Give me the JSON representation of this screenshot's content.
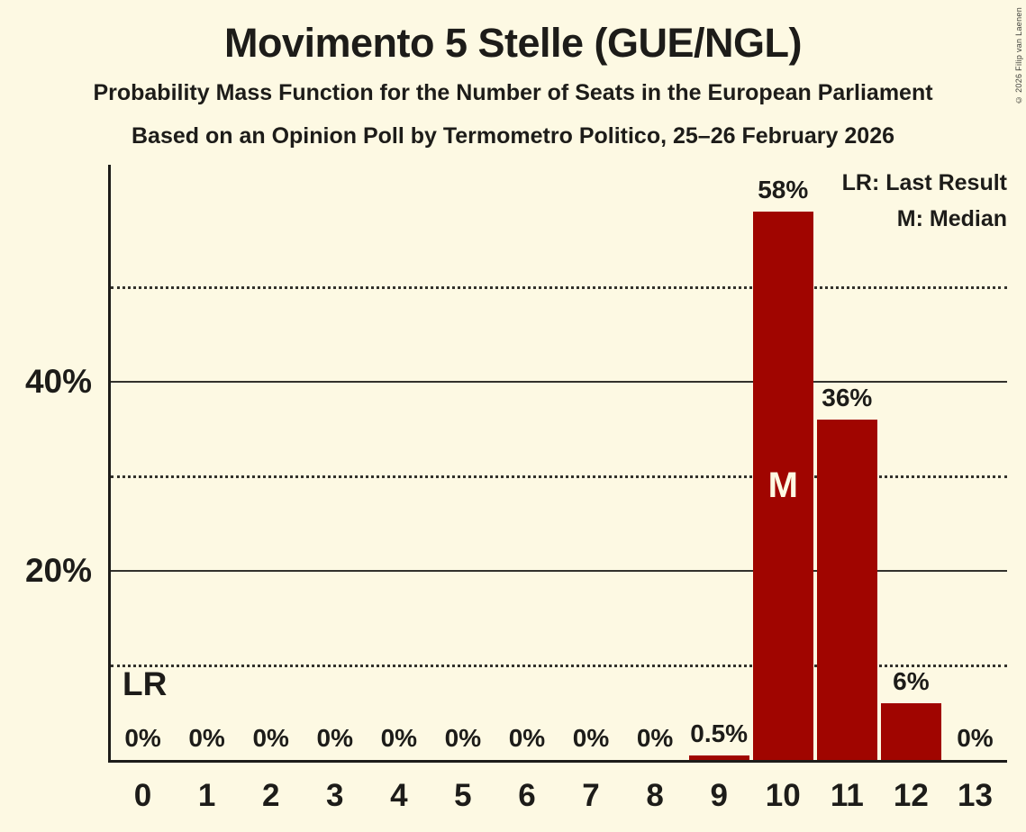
{
  "header": {
    "title": "Movimento 5 Stelle (GUE/NGL)",
    "subtitle1": "Probability Mass Function for the Number of Seats in the European Parliament",
    "subtitle2": "Based on an Opinion Poll by Termometro Politico, 25–26 February 2026"
  },
  "legend": {
    "last_result_label": "LR: Last Result",
    "median_label": "M: Median"
  },
  "footer": {
    "copyright": "© 2026 Filip van Laenen"
  },
  "colors": {
    "background": "#FDF9E3",
    "bar": "#A00500",
    "text": "#1D1C19",
    "gridline": "#33322C",
    "marker_text": "#FDF9E3"
  },
  "chart_data": {
    "type": "bar",
    "title": "Movimento 5 Stelle (GUE/NGL)",
    "xlabel": "",
    "ylabel": "",
    "categories": [
      "0",
      "1",
      "2",
      "3",
      "4",
      "5",
      "6",
      "7",
      "8",
      "9",
      "10",
      "11",
      "12",
      "13"
    ],
    "values": [
      0,
      0,
      0,
      0,
      0,
      0,
      0,
      0,
      0,
      0.5,
      58,
      36,
      6,
      0
    ],
    "value_labels": [
      "0%",
      "0%",
      "0%",
      "0%",
      "0%",
      "0%",
      "0%",
      "0%",
      "0%",
      "0.5%",
      "58%",
      "36%",
      "6%",
      "0%"
    ],
    "ylim": [
      0,
      63
    ],
    "yticks": [
      {
        "value": 20,
        "label": "20%"
      },
      {
        "value": 40,
        "label": "40%"
      }
    ],
    "gridlines": {
      "solid": [
        20,
        40
      ],
      "dotted": [
        10,
        30,
        50
      ]
    },
    "legend_position": "top-right",
    "grid": true,
    "annotations": {
      "last_result": {
        "label": "LR",
        "seat": 0
      },
      "median": {
        "label": "M",
        "seat": 10
      }
    }
  }
}
